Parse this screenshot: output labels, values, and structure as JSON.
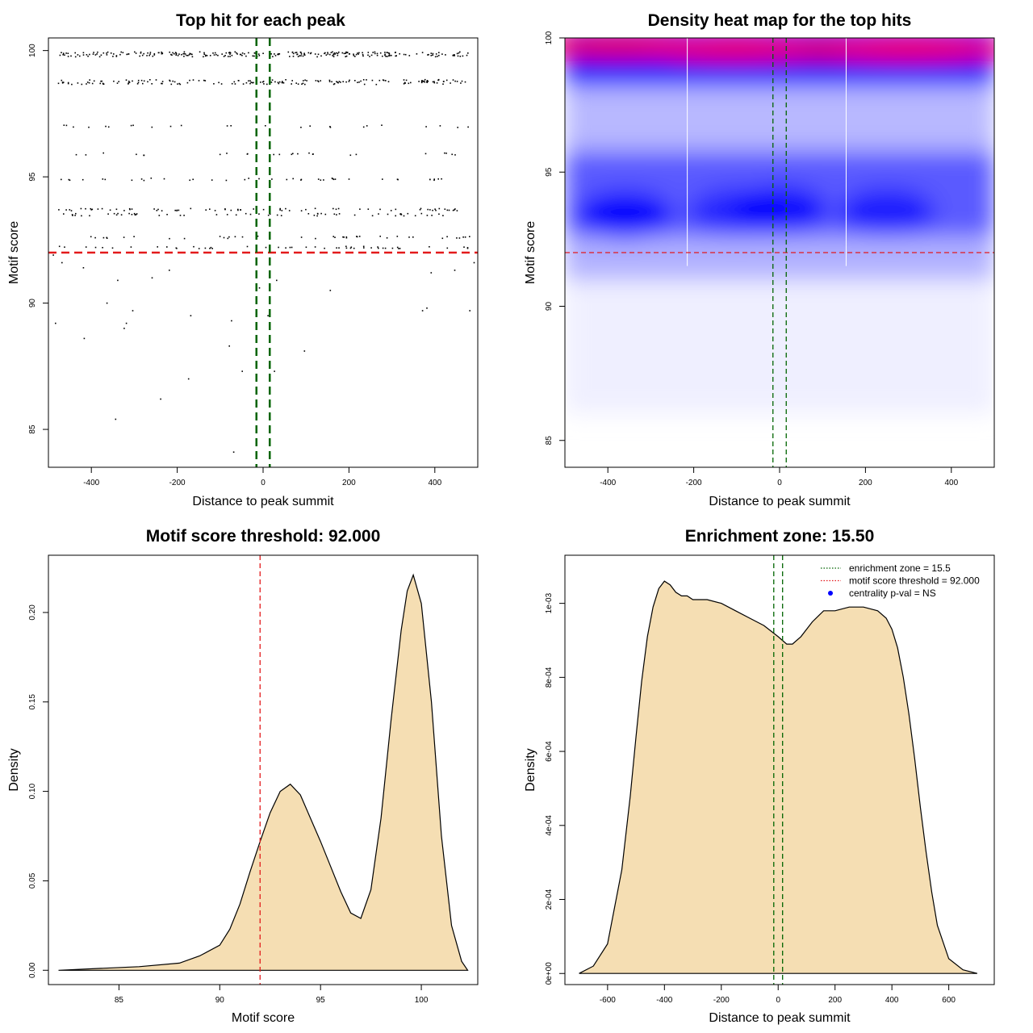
{
  "colors": {
    "threshold": "#e31a1c",
    "zone": "#006400",
    "fill": "#f5deb3",
    "heat_low": "#ffffff",
    "heat_mid": "#0000ff",
    "heat_high": "#ff0000",
    "legend_point": "#0000ff"
  },
  "chart_data": [
    {
      "type": "scatter",
      "title": "Top hit for each peak",
      "xlabel": "Distance to peak summit",
      "ylabel": "Motif score",
      "xlim": [
        -500,
        500
      ],
      "ylim": [
        83.5,
        100.5
      ],
      "xticks": [
        -400,
        -200,
        0,
        200,
        400
      ],
      "yticks": [
        85,
        90,
        95,
        100
      ],
      "grid": false,
      "threshold_y": 92.0,
      "zone_x": [
        -15.5,
        15.5
      ],
      "score_levels": [
        99.9,
        99.8,
        98.8,
        98.7,
        97.0,
        95.9,
        94.9,
        93.7,
        93.5,
        92.6,
        92.2
      ],
      "sparse_points": [
        {
          "x": -490,
          "y": 91.9
        },
        {
          "x": -485,
          "y": 89.2
        },
        {
          "x": -470,
          "y": 91.6
        },
        {
          "x": -420,
          "y": 91.4
        },
        {
          "x": -418,
          "y": 88.6
        },
        {
          "x": -365,
          "y": 90.0
        },
        {
          "x": -345,
          "y": 85.4
        },
        {
          "x": -340,
          "y": 90.9
        },
        {
          "x": -325,
          "y": 89.0
        },
        {
          "x": -320,
          "y": 89.2
        },
        {
          "x": -305,
          "y": 89.7
        },
        {
          "x": -260,
          "y": 91.0
        },
        {
          "x": -240,
          "y": 86.2
        },
        {
          "x": -220,
          "y": 91.3
        },
        {
          "x": -175,
          "y": 87.0
        },
        {
          "x": -170,
          "y": 89.5
        },
        {
          "x": -80,
          "y": 88.3
        },
        {
          "x": -75,
          "y": 89.3
        },
        {
          "x": -70,
          "y": 84.1
        },
        {
          "x": -50,
          "y": 87.3
        },
        {
          "x": -10,
          "y": 90.6
        },
        {
          "x": 10,
          "y": 89.5
        },
        {
          "x": 25,
          "y": 87.3
        },
        {
          "x": 30,
          "y": 90.9
        },
        {
          "x": 95,
          "y": 88.1
        },
        {
          "x": 155,
          "y": 90.5
        },
        {
          "x": 370,
          "y": 89.7
        },
        {
          "x": 380,
          "y": 89.8
        },
        {
          "x": 390,
          "y": 91.2
        },
        {
          "x": 445,
          "y": 91.3
        },
        {
          "x": 480,
          "y": 89.7
        },
        {
          "x": 490,
          "y": 91.6
        }
      ]
    },
    {
      "type": "heatmap",
      "title": "Density heat map for the top hits",
      "xlabel": "Distance to peak summit",
      "ylabel": "Motif score",
      "xlim": [
        -500,
        500
      ],
      "ylim": [
        84,
        100
      ],
      "xticks": [
        -400,
        -200,
        0,
        200,
        400
      ],
      "yticks": [
        85,
        90,
        95,
        100
      ],
      "grid": false,
      "threshold_y": 92.0,
      "zone_x": [
        -15.5,
        15.5
      ],
      "white_vlines_x": [
        -215,
        155
      ],
      "hotspots": [
        {
          "x": -380,
          "y": 99.7,
          "intensity": 1.7
        },
        {
          "x": -100,
          "y": 99.6,
          "intensity": 1.8
        },
        {
          "x": 100,
          "y": 99.6,
          "intensity": 1.0
        },
        {
          "x": 300,
          "y": 99.6,
          "intensity": 2.0
        },
        {
          "x": -360,
          "y": 93.4,
          "intensity": 0.95
        },
        {
          "x": -100,
          "y": 93.5,
          "intensity": 0.55
        },
        {
          "x": 0,
          "y": 93.6,
          "intensity": 0.85
        },
        {
          "x": 250,
          "y": 93.5,
          "intensity": 0.7
        }
      ]
    },
    {
      "type": "area",
      "title": "Motif score threshold: 92.000",
      "xlabel": "Motif score",
      "ylabel": "Density",
      "xlim": [
        81.5,
        102.8
      ],
      "ylim": [
        -0.008,
        0.232
      ],
      "xticks": [
        85,
        90,
        95,
        100
      ],
      "yticks": [
        0.0,
        0.05,
        0.1,
        0.15,
        0.2
      ],
      "ytick_labels": [
        "0.00",
        "0.05",
        "0.10",
        "0.15",
        "0.20"
      ],
      "grid": false,
      "threshold_x": 92.0,
      "x": [
        82,
        84,
        86,
        88,
        89,
        90,
        90.5,
        91,
        91.5,
        92,
        92.5,
        93,
        93.5,
        94,
        94.5,
        95,
        95.5,
        96,
        96.5,
        97,
        97.5,
        98,
        98.5,
        99,
        99.3,
        99.6,
        100,
        100.5,
        101,
        101.5,
        102,
        102.3
      ],
      "y": [
        0.0,
        0.001,
        0.002,
        0.004,
        0.008,
        0.014,
        0.023,
        0.037,
        0.055,
        0.072,
        0.088,
        0.1,
        0.104,
        0.098,
        0.085,
        0.072,
        0.058,
        0.044,
        0.032,
        0.029,
        0.045,
        0.085,
        0.14,
        0.19,
        0.212,
        0.221,
        0.205,
        0.15,
        0.075,
        0.025,
        0.005,
        0.0
      ]
    },
    {
      "type": "area",
      "title": "Enrichment zone: 15.50",
      "xlabel": "Distance to peak summit",
      "ylabel": "Density",
      "xlim": [
        -750,
        760
      ],
      "ylim": [
        -3e-05,
        0.00113
      ],
      "xticks": [
        -600,
        -400,
        -200,
        0,
        200,
        400,
        600
      ],
      "yticks": [
        0.0,
        0.0002,
        0.0004,
        0.0006,
        0.0008,
        0.001
      ],
      "ytick_labels": [
        "0e+00",
        "2e-04",
        "4e-04",
        "6e-04",
        "8e-04",
        "1e-03"
      ],
      "grid": false,
      "zone_x": [
        -15.5,
        15.5
      ],
      "x": [
        -700,
        -650,
        -600,
        -550,
        -520,
        -500,
        -480,
        -460,
        -440,
        -420,
        -400,
        -380,
        -360,
        -340,
        -320,
        -300,
        -250,
        -200,
        -150,
        -100,
        -50,
        0,
        30,
        50,
        80,
        120,
        160,
        200,
        250,
        300,
        350,
        380,
        400,
        420,
        440,
        460,
        480,
        500,
        520,
        540,
        560,
        600,
        650,
        700
      ],
      "y": [
        0.0,
        2e-05,
        8e-05,
        0.00028,
        0.00048,
        0.00064,
        0.00079,
        0.00091,
        0.00099,
        0.00104,
        0.00106,
        0.00105,
        0.00103,
        0.00102,
        0.00102,
        0.00101,
        0.00101,
        0.001,
        0.00098,
        0.00096,
        0.00094,
        0.00091,
        0.00089,
        0.00089,
        0.00091,
        0.00095,
        0.00098,
        0.00098,
        0.00099,
        0.00099,
        0.00098,
        0.00096,
        0.00093,
        0.00088,
        0.0008,
        0.0007,
        0.00058,
        0.00045,
        0.00033,
        0.00022,
        0.00013,
        4e-05,
        1e-05,
        0.0
      ],
      "legend": {
        "placement": "top-right",
        "entries": [
          {
            "label": "enrichment zone = 15.5",
            "style": "dotted-line",
            "color": "#006400"
          },
          {
            "label": "motif score threshold = 92.000",
            "style": "dotted-line",
            "color": "#e31a1c"
          },
          {
            "label": "centrality p-val = NS",
            "style": "point",
            "color": "#0000ff"
          }
        ]
      }
    }
  ]
}
